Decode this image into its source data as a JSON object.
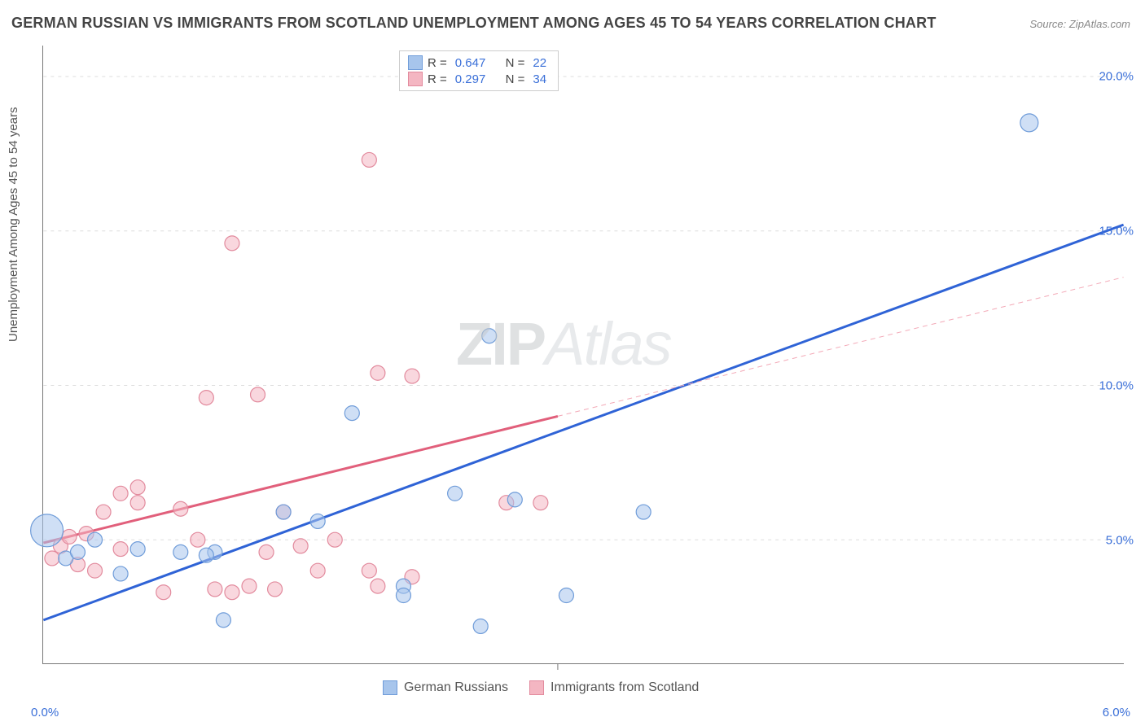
{
  "title": "GERMAN RUSSIAN VS IMMIGRANTS FROM SCOTLAND UNEMPLOYMENT AMONG AGES 45 TO 54 YEARS CORRELATION CHART",
  "source": "Source: ZipAtlas.com",
  "watermark_left": "ZIP",
  "watermark_right": "Atlas",
  "y_axis_label": "Unemployment Among Ages 45 to 54 years",
  "chart": {
    "type": "scatter",
    "xlim": [
      0.0,
      6.3
    ],
    "ylim": [
      1.0,
      21.0
    ],
    "x_ticks": [
      {
        "value": 0.0,
        "label": "0.0%"
      },
      {
        "value": 6.0,
        "label": "6.0%"
      }
    ],
    "y_ticks": [
      {
        "value": 5.0,
        "label": "5.0%"
      },
      {
        "value": 10.0,
        "label": "10.0%"
      },
      {
        "value": 15.0,
        "label": "15.0%"
      },
      {
        "value": 20.0,
        "label": "20.0%"
      }
    ],
    "grid_color": "#dddddd",
    "axis_color": "#777777",
    "background_color": "#ffffff",
    "label_fontsize": 15,
    "title_fontsize": 18,
    "tick_color": "#3a6fd8",
    "series": [
      {
        "name": "German Russians",
        "fill": "#a7c5ec",
        "stroke": "#6f9cd9",
        "fill_opacity": 0.55,
        "marker_r": 9,
        "trend": {
          "stroke": "#2f63d6",
          "width": 3,
          "dash": null,
          "x1": 0.0,
          "y1": 2.4,
          "x2": 6.3,
          "y2": 15.2
        },
        "stats": {
          "R": "0.647",
          "N": "22"
        },
        "points": [
          {
            "x": 0.02,
            "y": 5.3,
            "r": 20
          },
          {
            "x": 0.13,
            "y": 4.4
          },
          {
            "x": 0.45,
            "y": 3.9
          },
          {
            "x": 0.55,
            "y": 4.7
          },
          {
            "x": 0.8,
            "y": 4.6
          },
          {
            "x": 1.0,
            "y": 4.6
          },
          {
            "x": 1.05,
            "y": 2.4
          },
          {
            "x": 1.4,
            "y": 5.9
          },
          {
            "x": 1.6,
            "y": 5.6
          },
          {
            "x": 1.8,
            "y": 9.1
          },
          {
            "x": 2.1,
            "y": 3.5
          },
          {
            "x": 2.1,
            "y": 3.2
          },
          {
            "x": 2.4,
            "y": 6.5
          },
          {
            "x": 2.55,
            "y": 2.2
          },
          {
            "x": 2.6,
            "y": 11.6
          },
          {
            "x": 2.75,
            "y": 6.3
          },
          {
            "x": 3.05,
            "y": 3.2
          },
          {
            "x": 3.5,
            "y": 5.9
          },
          {
            "x": 5.75,
            "y": 18.5,
            "r": 11
          },
          {
            "x": 0.3,
            "y": 5.0
          },
          {
            "x": 0.2,
            "y": 4.6
          },
          {
            "x": 0.95,
            "y": 4.5
          }
        ]
      },
      {
        "name": "Immigrants from Scotland",
        "fill": "#f4b6c2",
        "stroke": "#e28a9d",
        "fill_opacity": 0.55,
        "marker_r": 9,
        "trend": {
          "stroke": "#e15f7b",
          "width": 3,
          "dash": null,
          "x1": 0.0,
          "y1": 4.9,
          "x2": 3.0,
          "y2": 9.0
        },
        "trend_ext": {
          "stroke": "#f3a9b7",
          "width": 1,
          "dash": "6,5",
          "x1": 3.0,
          "y1": 9.0,
          "x2": 6.3,
          "y2": 13.5
        },
        "stats": {
          "R": "0.297",
          "N": "34"
        },
        "points": [
          {
            "x": 0.05,
            "y": 4.4
          },
          {
            "x": 0.1,
            "y": 4.8
          },
          {
            "x": 0.15,
            "y": 5.1
          },
          {
            "x": 0.2,
            "y": 4.2
          },
          {
            "x": 0.25,
            "y": 5.2
          },
          {
            "x": 0.3,
            "y": 4.0
          },
          {
            "x": 0.35,
            "y": 5.9
          },
          {
            "x": 0.45,
            "y": 6.5
          },
          {
            "x": 0.55,
            "y": 6.2
          },
          {
            "x": 0.55,
            "y": 6.7
          },
          {
            "x": 0.7,
            "y": 3.3
          },
          {
            "x": 0.95,
            "y": 9.6
          },
          {
            "x": 1.0,
            "y": 3.4
          },
          {
            "x": 1.1,
            "y": 14.6
          },
          {
            "x": 1.1,
            "y": 3.3
          },
          {
            "x": 1.2,
            "y": 3.5
          },
          {
            "x": 1.25,
            "y": 9.7
          },
          {
            "x": 1.3,
            "y": 4.6
          },
          {
            "x": 1.35,
            "y": 3.4
          },
          {
            "x": 1.4,
            "y": 5.9
          },
          {
            "x": 1.5,
            "y": 4.8
          },
          {
            "x": 1.6,
            "y": 4.0
          },
          {
            "x": 1.7,
            "y": 5.0
          },
          {
            "x": 1.9,
            "y": 17.3
          },
          {
            "x": 1.9,
            "y": 4.0
          },
          {
            "x": 1.95,
            "y": 3.5
          },
          {
            "x": 1.95,
            "y": 10.4
          },
          {
            "x": 2.15,
            "y": 10.3
          },
          {
            "x": 2.15,
            "y": 3.8
          },
          {
            "x": 2.7,
            "y": 6.2
          },
          {
            "x": 2.9,
            "y": 6.2
          },
          {
            "x": 0.45,
            "y": 4.7
          },
          {
            "x": 0.8,
            "y": 6.0
          },
          {
            "x": 0.9,
            "y": 5.0
          }
        ]
      }
    ]
  },
  "legend_top_labels": {
    "R_label": "R =",
    "N_label": "N ="
  },
  "legend_bottom": [
    {
      "label": "German Russians",
      "fill": "#a7c5ec",
      "stroke": "#6f9cd9"
    },
    {
      "label": "Immigrants from Scotland",
      "fill": "#f4b6c2",
      "stroke": "#e28a9d"
    }
  ]
}
